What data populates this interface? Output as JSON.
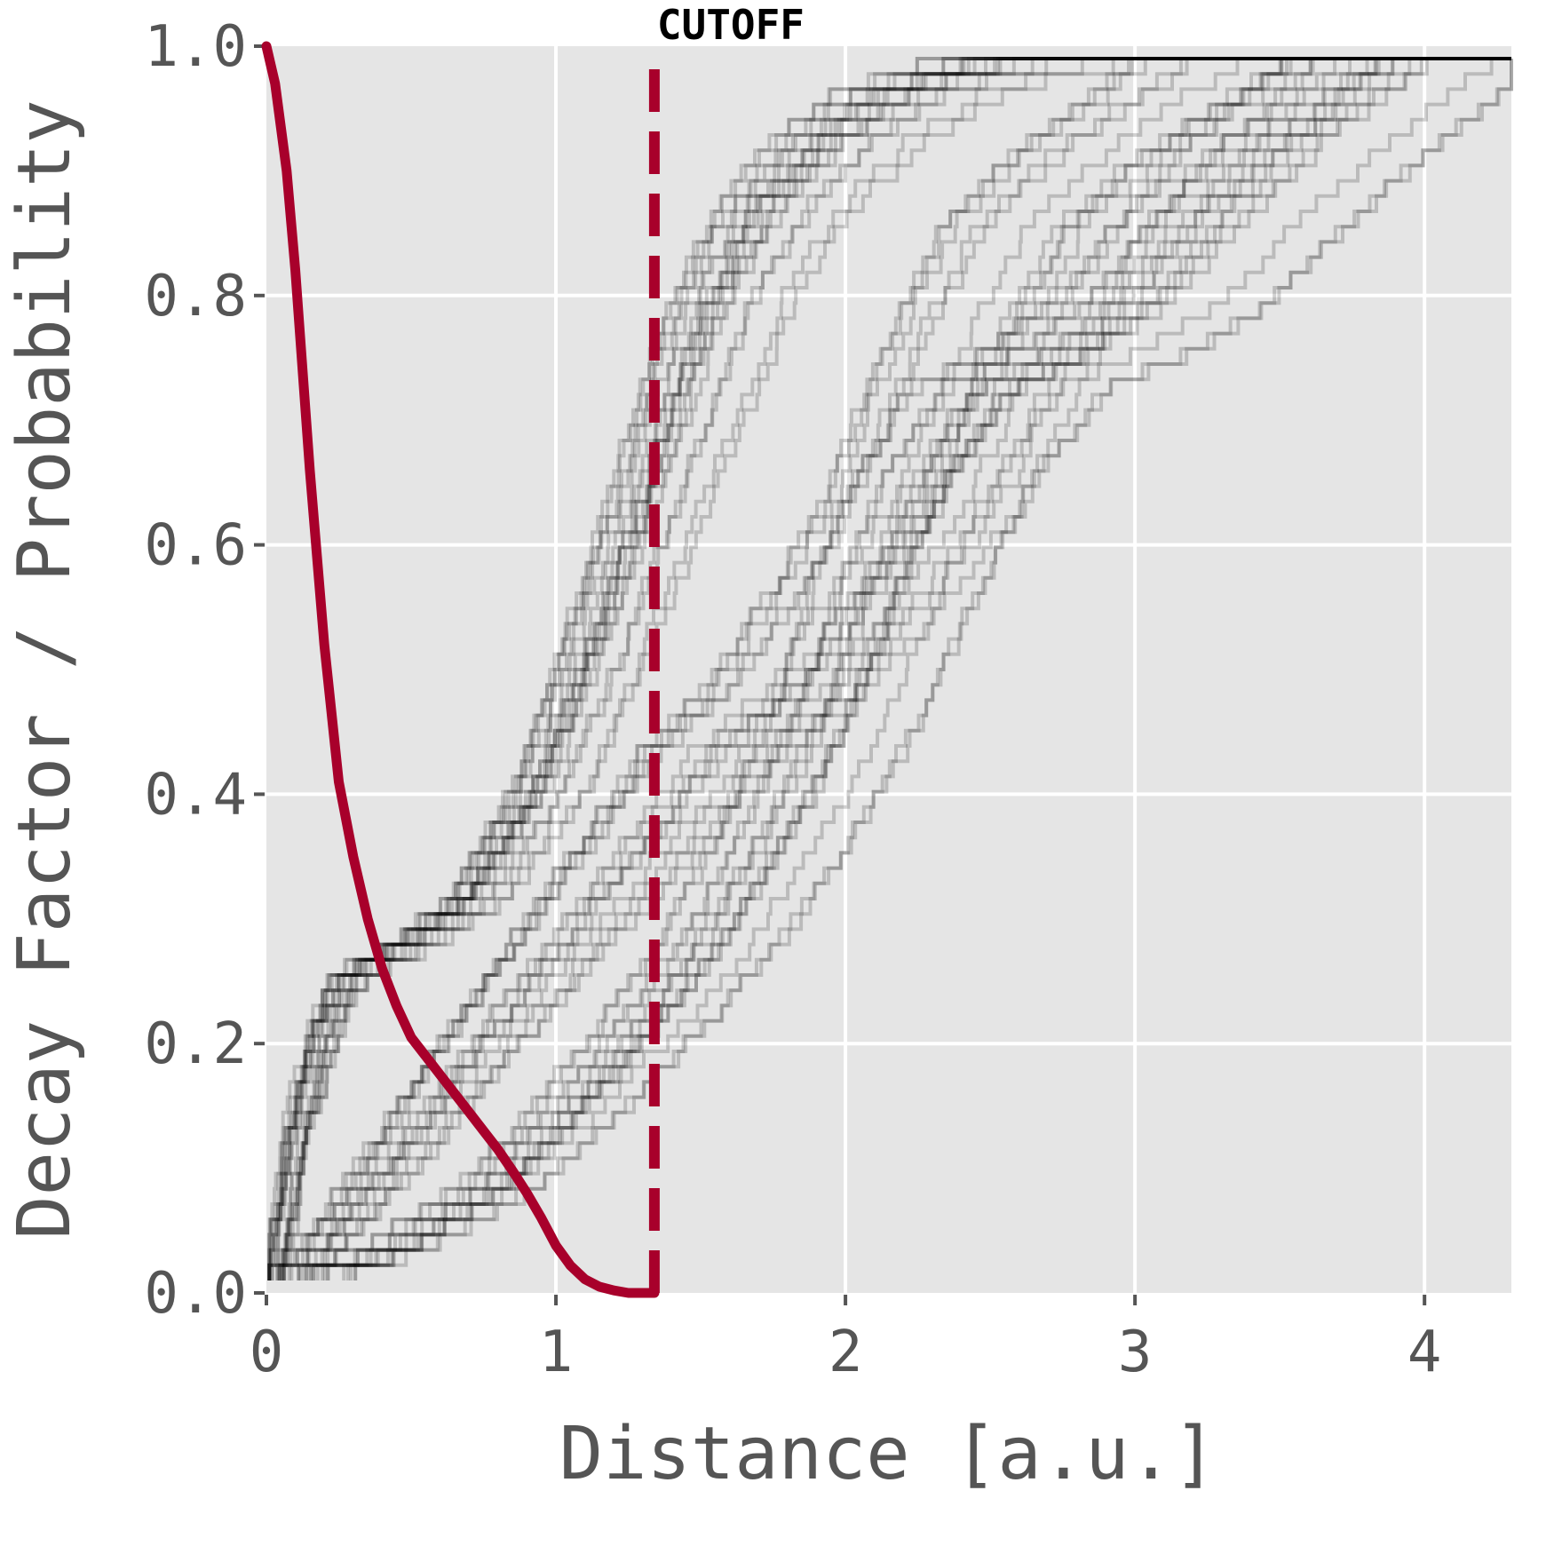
{
  "chart_data": {
    "type": "line",
    "title": "",
    "xlabel": "Distance [a.u.]",
    "ylabel": "Decay Factor / Probability",
    "xlim": [
      0,
      4.3
    ],
    "ylim": [
      0,
      1.0
    ],
    "x_ticks": [
      "0",
      "1",
      "2",
      "3",
      "4"
    ],
    "x_tick_values": [
      0,
      1,
      2,
      3,
      4
    ],
    "y_ticks": [
      "0.0",
      "0.2",
      "0.4",
      "0.6",
      "0.8",
      "1.0"
    ],
    "y_tick_values": [
      0.0,
      0.2,
      0.4,
      0.6,
      0.8,
      1.0
    ],
    "grid": true,
    "background_color": "#e5e5e5",
    "grid_color": "#ffffff",
    "cutoff": {
      "label": "CUTOFF",
      "x": 1.34,
      "color": "#a8002b",
      "style": "dashed"
    },
    "decay_curve": {
      "color": "#a8002b",
      "x": [
        0.0,
        0.03,
        0.07,
        0.1,
        0.15,
        0.2,
        0.25,
        0.3,
        0.35,
        0.4,
        0.45,
        0.5,
        0.55,
        0.6,
        0.65,
        0.7,
        0.75,
        0.8,
        0.85,
        0.9,
        0.95,
        1.0,
        1.05,
        1.1,
        1.15,
        1.2,
        1.25,
        1.3,
        1.34
      ],
      "y": [
        1.0,
        0.97,
        0.9,
        0.82,
        0.66,
        0.52,
        0.41,
        0.35,
        0.3,
        0.26,
        0.23,
        0.205,
        0.19,
        0.175,
        0.16,
        0.145,
        0.13,
        0.115,
        0.098,
        0.08,
        0.06,
        0.038,
        0.022,
        0.011,
        0.005,
        0.002,
        0.0,
        0.0,
        0.0
      ]
    },
    "ecdf_ensemble": {
      "color": "#000000",
      "opacity": 0.18,
      "clusters": [
        {
          "count": 18,
          "x": [
            0.02,
            0.1,
            0.2,
            0.28,
            0.45,
            0.7,
            0.95,
            1.15,
            1.3,
            1.4,
            1.55,
            1.75,
            1.95,
            2.2,
            2.5,
            2.7
          ],
          "y": [
            0.01,
            0.13,
            0.22,
            0.26,
            0.28,
            0.32,
            0.41,
            0.53,
            0.63,
            0.7,
            0.8,
            0.88,
            0.93,
            0.97,
            0.99,
            0.99
          ],
          "spread": 0.28
        },
        {
          "count": 14,
          "x": [
            0.05,
            0.25,
            0.45,
            0.7,
            0.9,
            1.1,
            1.3,
            1.5,
            1.75,
            2.0,
            2.2,
            2.35,
            2.5,
            2.7,
            3.0,
            3.4
          ],
          "y": [
            0.01,
            0.06,
            0.12,
            0.2,
            0.26,
            0.32,
            0.38,
            0.44,
            0.49,
            0.57,
            0.64,
            0.72,
            0.79,
            0.87,
            0.93,
            0.99
          ],
          "spread": 0.55
        },
        {
          "count": 14,
          "x": [
            0.05,
            0.4,
            0.75,
            1.0,
            1.25,
            1.45,
            1.7,
            1.9,
            2.05,
            2.2,
            2.4,
            2.65,
            2.9,
            3.15,
            3.4,
            3.7
          ],
          "y": [
            0.01,
            0.04,
            0.09,
            0.15,
            0.22,
            0.28,
            0.38,
            0.48,
            0.58,
            0.66,
            0.73,
            0.76,
            0.8,
            0.87,
            0.93,
            0.99
          ],
          "spread": 0.75
        }
      ]
    }
  }
}
